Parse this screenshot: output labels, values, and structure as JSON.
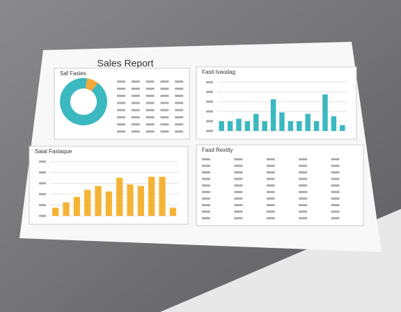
{
  "header": {
    "title": "Sales Report"
  },
  "panels": [
    {
      "title": "Saf Fasies",
      "type": "pie",
      "values": [
        8,
        92
      ],
      "colors": [
        "#f2a93b",
        "#3bb8c0"
      ]
    },
    {
      "title": "Fasti Ivaodag",
      "type": "bar",
      "color": "#3bb8c0",
      "ylim": [
        0,
        100
      ],
      "values": [
        20,
        20,
        25,
        20,
        35,
        20,
        65,
        38,
        20,
        20,
        35,
        20,
        75,
        30,
        12
      ]
    },
    {
      "title": "Saial Fastaque",
      "type": "bar",
      "color": "#f5b335",
      "ylim": [
        0,
        100
      ],
      "values": [
        15,
        25,
        35,
        48,
        55,
        45,
        70,
        58,
        55,
        72,
        72,
        15
      ]
    },
    {
      "title": "Fasd Rextity",
      "type": "table"
    }
  ]
}
